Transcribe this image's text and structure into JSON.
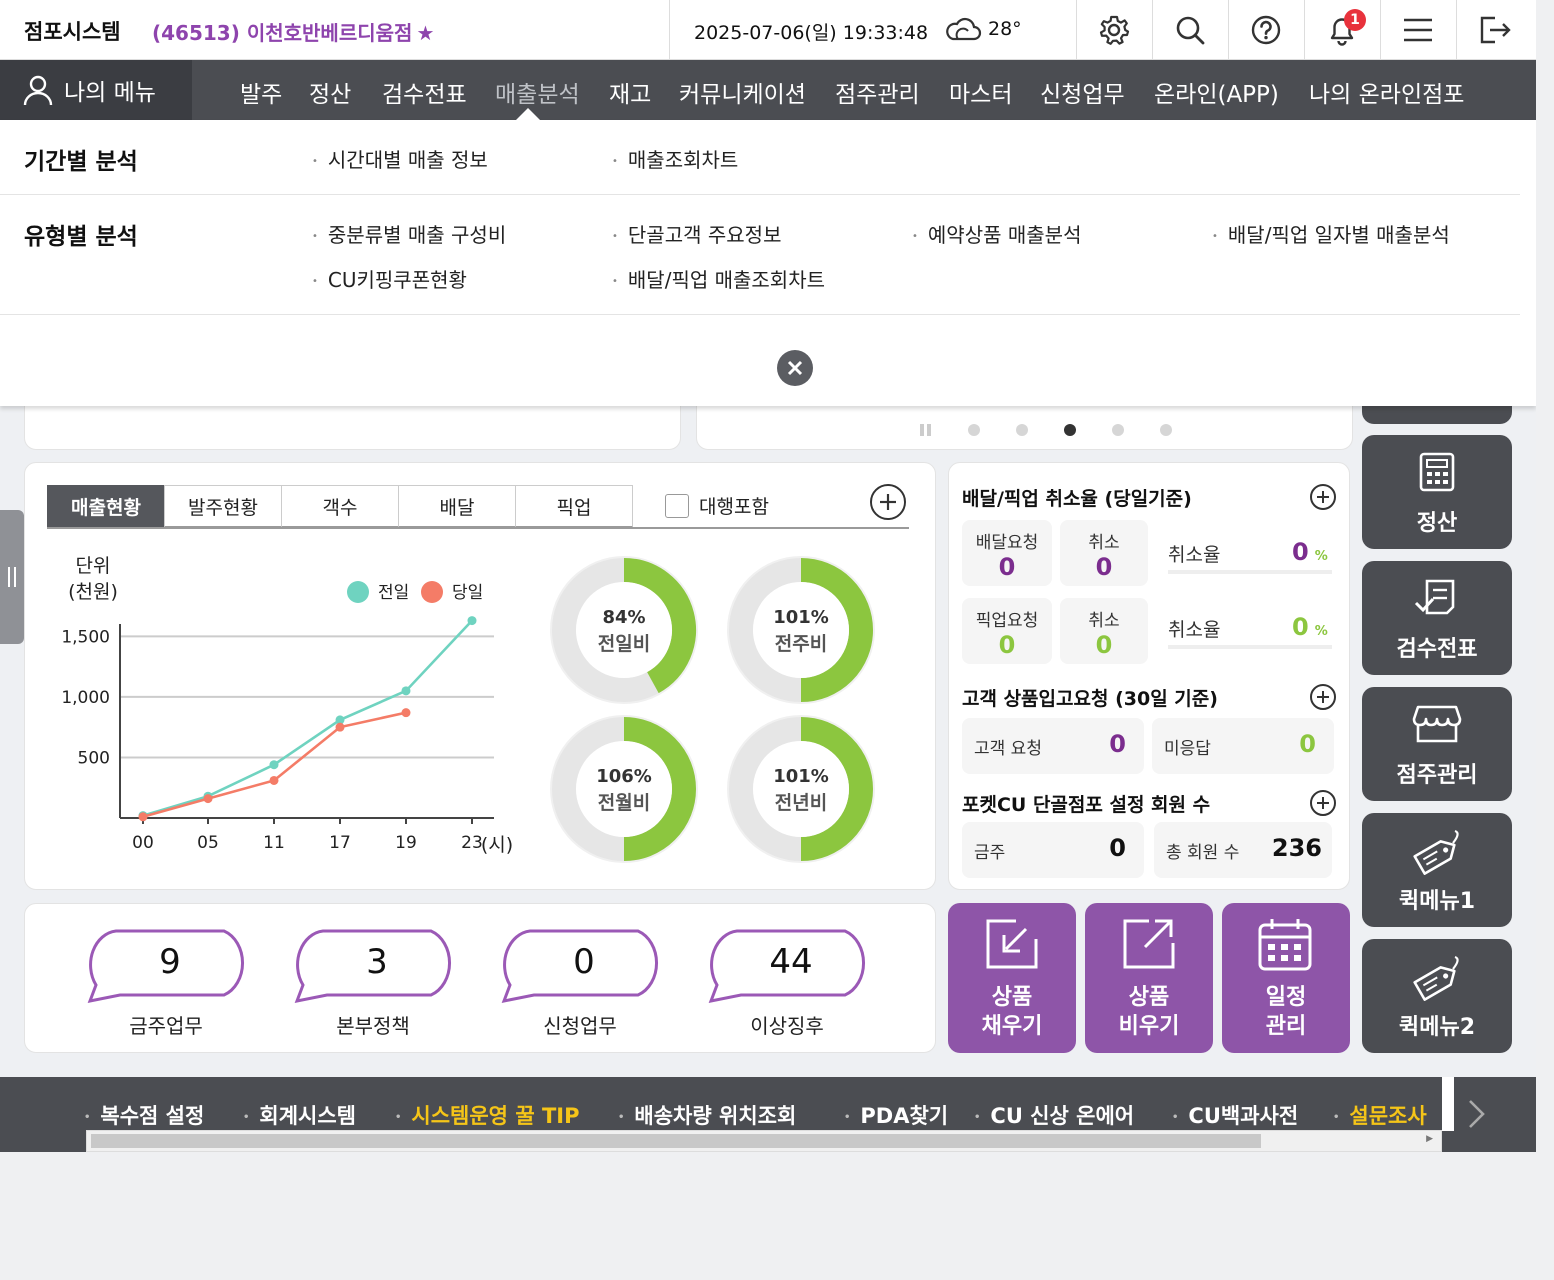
{
  "topbar": {
    "brand": "점포시스템",
    "store": "(46513) 이천호반베르디움점",
    "datetime": "2025-07-06(일) 19:33:48",
    "temperature": "28°",
    "notification_count": "1"
  },
  "nav": {
    "my_menu": "나의 메뉴",
    "items": [
      "발주",
      "정산",
      "검수전표",
      "매출분석",
      "재고",
      "커뮤니케이션",
      "점주관리",
      "마스터",
      "신청업무",
      "온라인(APP)",
      "나의 온라인점포"
    ]
  },
  "dropdown": {
    "section1_title": "기간별 분석",
    "section1_links": [
      "시간대별 매출 정보",
      "매출조회차트"
    ],
    "section2_title": "유형별 분석",
    "section2_links": [
      "중분류별 매출 구성비",
      "단골고객 주요정보",
      "예약상품 매출분석",
      "배달/픽업 일자별 매출분석",
      "CU키핑쿠폰현황",
      "배달/픽업 매출조회차트"
    ]
  },
  "sales_tabs": [
    "매출현황",
    "발주현황",
    "객수",
    "배달",
    "픽업"
  ],
  "agency_checkbox_label": "대행포함",
  "chart_data": {
    "type": "line",
    "ylabel": "단위\n(천원)",
    "ylabel_line1": "단위",
    "ylabel_line2": "(천원)",
    "xunit": "(시)",
    "x": [
      "00",
      "05",
      "11",
      "17",
      "19",
      "23"
    ],
    "yticks": [
      500,
      1000,
      1500
    ],
    "ylim": [
      0,
      1800
    ],
    "legend": [
      "전일",
      "당일"
    ],
    "series": [
      {
        "name": "전일",
        "color": "#6fd3c0",
        "values": [
          20,
          180,
          440,
          810,
          1050,
          1630
        ]
      },
      {
        "name": "당일",
        "color": "#f47c67",
        "values": [
          10,
          160,
          310,
          750,
          870,
          null
        ]
      }
    ]
  },
  "donuts": [
    {
      "pct": "84%",
      "label": "전일비",
      "value": 84
    },
    {
      "pct": "101%",
      "label": "전주비",
      "value": 101
    },
    {
      "pct": "106%",
      "label": "전월비",
      "value": 106
    },
    {
      "pct": "101%",
      "label": "전년비",
      "value": 101
    }
  ],
  "delivery": {
    "title": "배달/픽업 취소율 (당일기준)",
    "delivery_req_label": "배달요청",
    "delivery_req": "0",
    "cancel_label": "취소",
    "delivery_cancel": "0",
    "rate_label": "취소율",
    "delivery_rate": "0",
    "pickup_req_label": "픽업요청",
    "pickup_req": "0",
    "pickup_cancel": "0",
    "pickup_rate": "0",
    "pct_unit": "%"
  },
  "restock": {
    "title": "고객 상품입고요청 (30일 기준)",
    "customer_req_label": "고객 요청",
    "customer_req": "0",
    "unanswered_label": "미응답",
    "unanswered": "0"
  },
  "pocketcu": {
    "title": "포켓CU 단골점포 설정 회원 수",
    "week_label": "금주",
    "week": "0",
    "total_label": "총 회원 수",
    "total": "236"
  },
  "bubbles": [
    {
      "num": "9",
      "label": "금주업무"
    },
    {
      "num": "3",
      "label": "본부정책"
    },
    {
      "num": "0",
      "label": "신청업무"
    },
    {
      "num": "44",
      "label": "이상징후"
    }
  ],
  "purple_buttons": [
    {
      "line1": "상품",
      "line2": "채우기"
    },
    {
      "line1": "상품",
      "line2": "비우기"
    },
    {
      "line1": "일정",
      "line2": "관리"
    }
  ],
  "quick_menu": [
    "정산",
    "검수전표",
    "점주관리",
    "퀵메뉴1",
    "퀵메뉴2"
  ],
  "footer_links": [
    "복수점 설정",
    "회계시스템",
    "시스템운영 꿀 TIP",
    "배송차량 위치조회",
    "PDA찾기",
    "CU 신상 온에어",
    "CU백과사전",
    "설문조사"
  ],
  "colors": {
    "accent_purple": "#8e55a8",
    "nav_bg": "#4b4d52",
    "donut_green": "#8cc63f"
  }
}
